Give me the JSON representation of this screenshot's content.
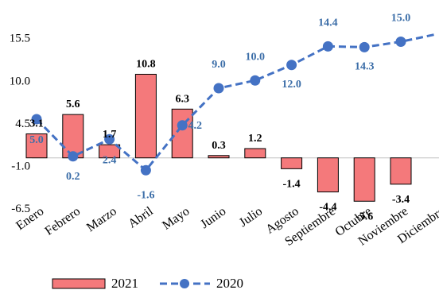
{
  "chart_data": {
    "type": "bar",
    "categories": [
      "Enero",
      "Febrero",
      "Marzo",
      "Abril",
      "Mayo",
      "Junio",
      "Julio",
      "Agosto",
      "Septiembre",
      "Octubre",
      "Noviembre",
      "Diciembre"
    ],
    "series": [
      {
        "name": "2021",
        "type": "bar",
        "color": "#f4797b",
        "values": [
          3.1,
          5.6,
          1.7,
          10.8,
          6.3,
          0.3,
          1.2,
          -1.4,
          -4.4,
          -5.6,
          -3.4,
          null
        ],
        "labels": [
          "3.1",
          "5.6",
          "1.7",
          "10.8",
          "6.3",
          "0.3",
          "1.2",
          "-1.4",
          "-4.4",
          "-5.6",
          "-3.4",
          ""
        ]
      },
      {
        "name": "2020",
        "type": "line",
        "color": "#4472c4",
        "values": [
          5.0,
          0.2,
          2.4,
          -1.6,
          4.2,
          9.0,
          10.0,
          12.0,
          14.4,
          14.3,
          15.0,
          16.0
        ],
        "labels": [
          "5.0",
          "0.2",
          "2.4",
          "-1.6",
          "4.2",
          "9.0",
          "10.0",
          "12.0",
          "14.4",
          "14.3",
          "15.0",
          ""
        ]
      }
    ],
    "y_ticks": [
      "15.5",
      "10.0",
      "4.5",
      "-1.0",
      "-6.5"
    ],
    "ylim": [
      -9,
      18
    ],
    "grid": false,
    "legend": "bottom"
  }
}
